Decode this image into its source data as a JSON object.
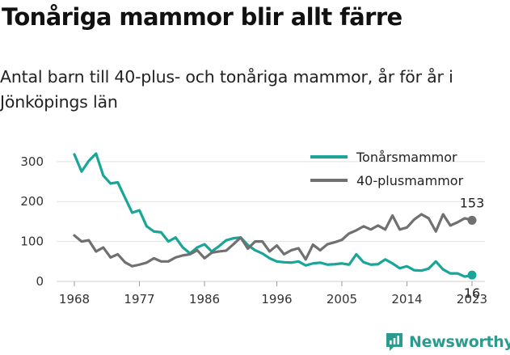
{
  "title": "Tonåriga mammor blir allt färre",
  "subtitle": "Antal barn till 40-plus- och tonåriga mammor, år för år i Jönköpings län",
  "brand": {
    "name": "Newsworthy",
    "icon": "newsworthy-logo-icon"
  },
  "colors": {
    "teen": "#1aa599",
    "forty": "#707070",
    "grid": "#e2e2e2",
    "text": "#333333"
  },
  "chart_data": {
    "type": "line",
    "title": "Tonåriga mammor blir allt färre",
    "subtitle": "Antal barn till 40-plus- och tonåriga mammor, år för år i Jönköpings län",
    "xlabel": "",
    "ylabel": "",
    "x_ticks": [
      1968,
      1977,
      1986,
      1996,
      2005,
      2014,
      2023
    ],
    "y_ticks": [
      0,
      100,
      200,
      300
    ],
    "ylim": [
      0,
      330
    ],
    "xlim": [
      1968,
      2023
    ],
    "grid": "horizontal",
    "legend_position": "top-right",
    "x": [
      1968,
      1969,
      1970,
      1971,
      1972,
      1973,
      1974,
      1975,
      1976,
      1977,
      1978,
      1979,
      1980,
      1981,
      1982,
      1983,
      1984,
      1985,
      1986,
      1987,
      1988,
      1989,
      1990,
      1991,
      1992,
      1993,
      1994,
      1995,
      1996,
      1997,
      1998,
      1999,
      2000,
      2001,
      2002,
      2003,
      2004,
      2005,
      2006,
      2007,
      2008,
      2009,
      2010,
      2011,
      2012,
      2013,
      2014,
      2015,
      2016,
      2017,
      2018,
      2019,
      2020,
      2021,
      2022,
      2023
    ],
    "series": [
      {
        "name": "Tonårsmammor",
        "color": "#1aa599",
        "end_label": "16",
        "values": [
          318,
          275,
          302,
          320,
          265,
          245,
          248,
          210,
          172,
          178,
          138,
          125,
          123,
          100,
          110,
          85,
          70,
          85,
          93,
          75,
          88,
          103,
          108,
          110,
          91,
          78,
          70,
          58,
          50,
          48,
          47,
          50,
          40,
          45,
          47,
          42,
          43,
          45,
          42,
          68,
          48,
          42,
          43,
          55,
          45,
          33,
          38,
          28,
          27,
          32,
          50,
          30,
          20,
          20,
          12,
          16
        ]
      },
      {
        "name": "40-plusmammor",
        "color": "#707070",
        "end_label": "153",
        "values": [
          115,
          100,
          103,
          75,
          85,
          60,
          68,
          48,
          38,
          42,
          47,
          58,
          50,
          50,
          60,
          65,
          68,
          78,
          58,
          72,
          75,
          77,
          93,
          110,
          82,
          100,
          100,
          75,
          90,
          68,
          78,
          83,
          55,
          92,
          78,
          93,
          98,
          104,
          120,
          128,
          138,
          130,
          140,
          130,
          165,
          130,
          135,
          155,
          168,
          158,
          125,
          168,
          140,
          148,
          158,
          153
        ]
      }
    ]
  }
}
